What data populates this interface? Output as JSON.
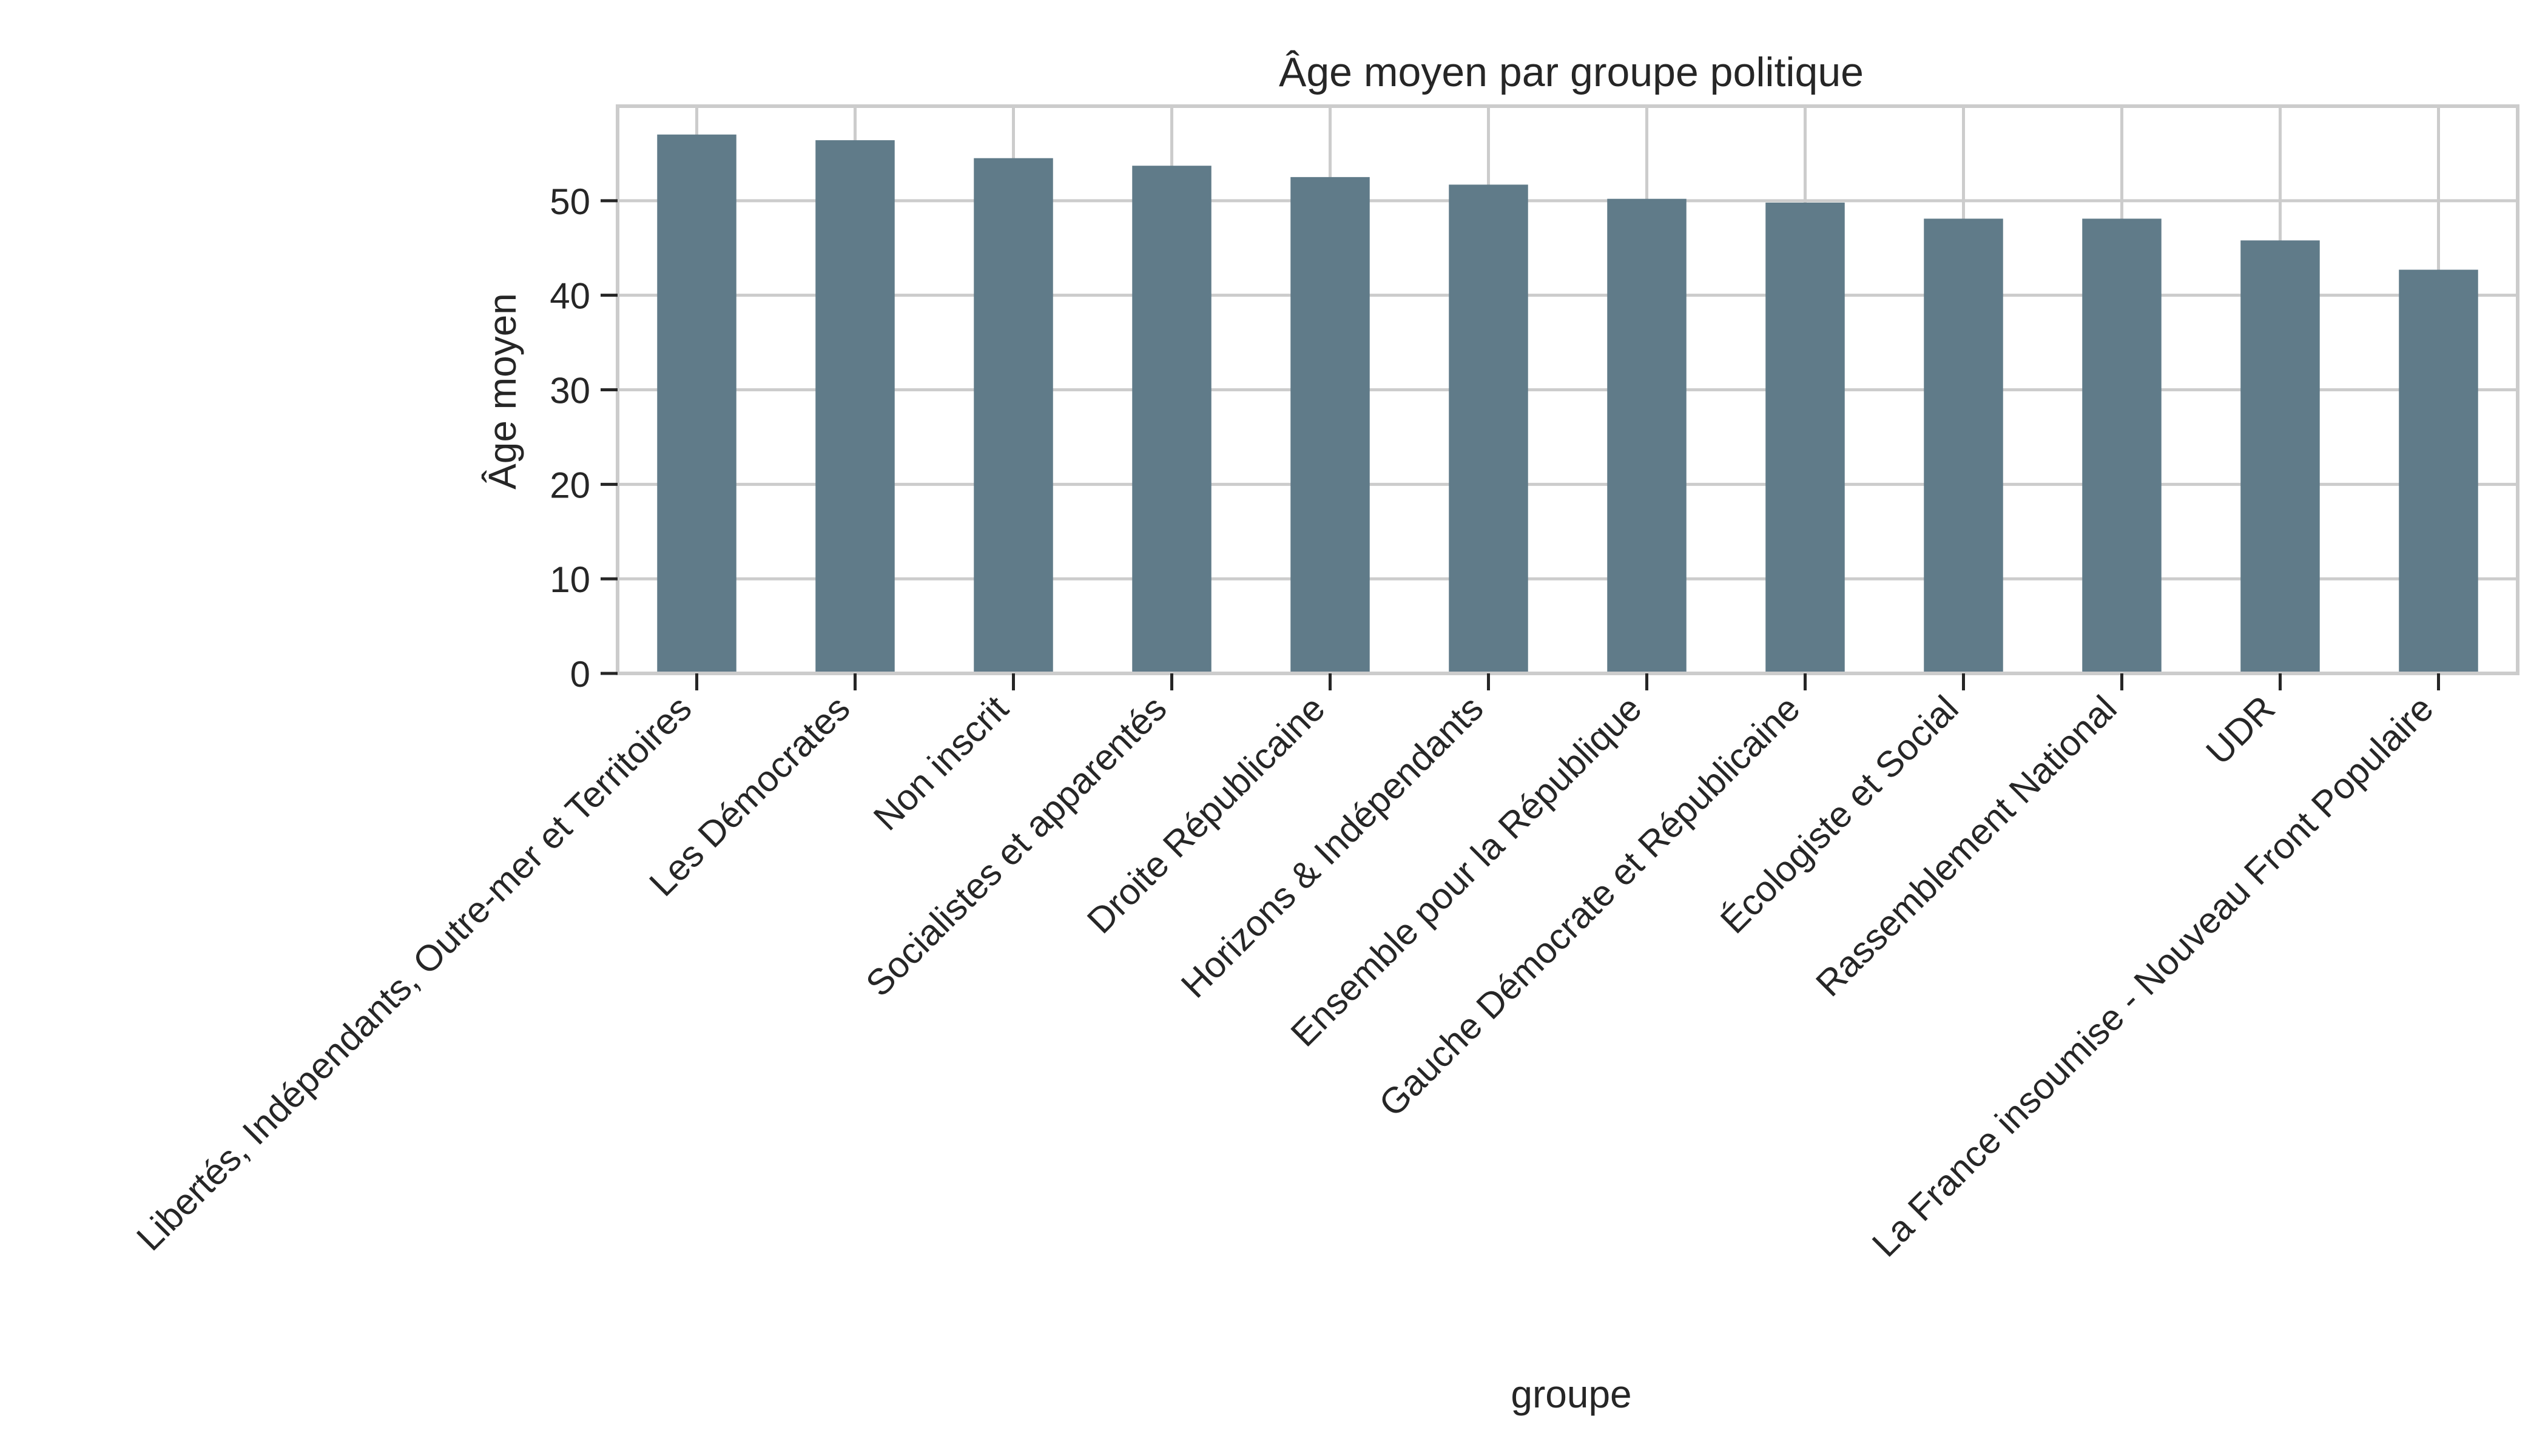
{
  "chart_data": {
    "type": "bar",
    "title": "Âge moyen par groupe politique",
    "xlabel": "groupe",
    "ylabel": "Âge moyen",
    "categories": [
      "Libertés, Indépendants, Outre-mer et Territoires",
      "Les Démocrates",
      "Non inscrit",
      "Socialistes et apparentés",
      "Droite Républicaine",
      "Horizons & Indépendants",
      "Ensemble pour la République",
      "Gauche Démocrate et Républicaine",
      "Écologiste et Social",
      "Rassemblement National",
      "UDR",
      "La France insoumise - Nouveau Front Populaire"
    ],
    "values": [
      57.0,
      56.4,
      54.5,
      53.7,
      52.5,
      51.7,
      50.2,
      49.8,
      48.1,
      48.1,
      45.8,
      42.7
    ],
    "yticks": [
      "0",
      "10",
      "20",
      "30",
      "40",
      "50"
    ],
    "ylim": [
      0,
      60
    ],
    "grid": true,
    "colors": {
      "bar": "#607b89",
      "grid": "#cccccc",
      "axis": "#cccccc",
      "text": "#262626"
    }
  }
}
